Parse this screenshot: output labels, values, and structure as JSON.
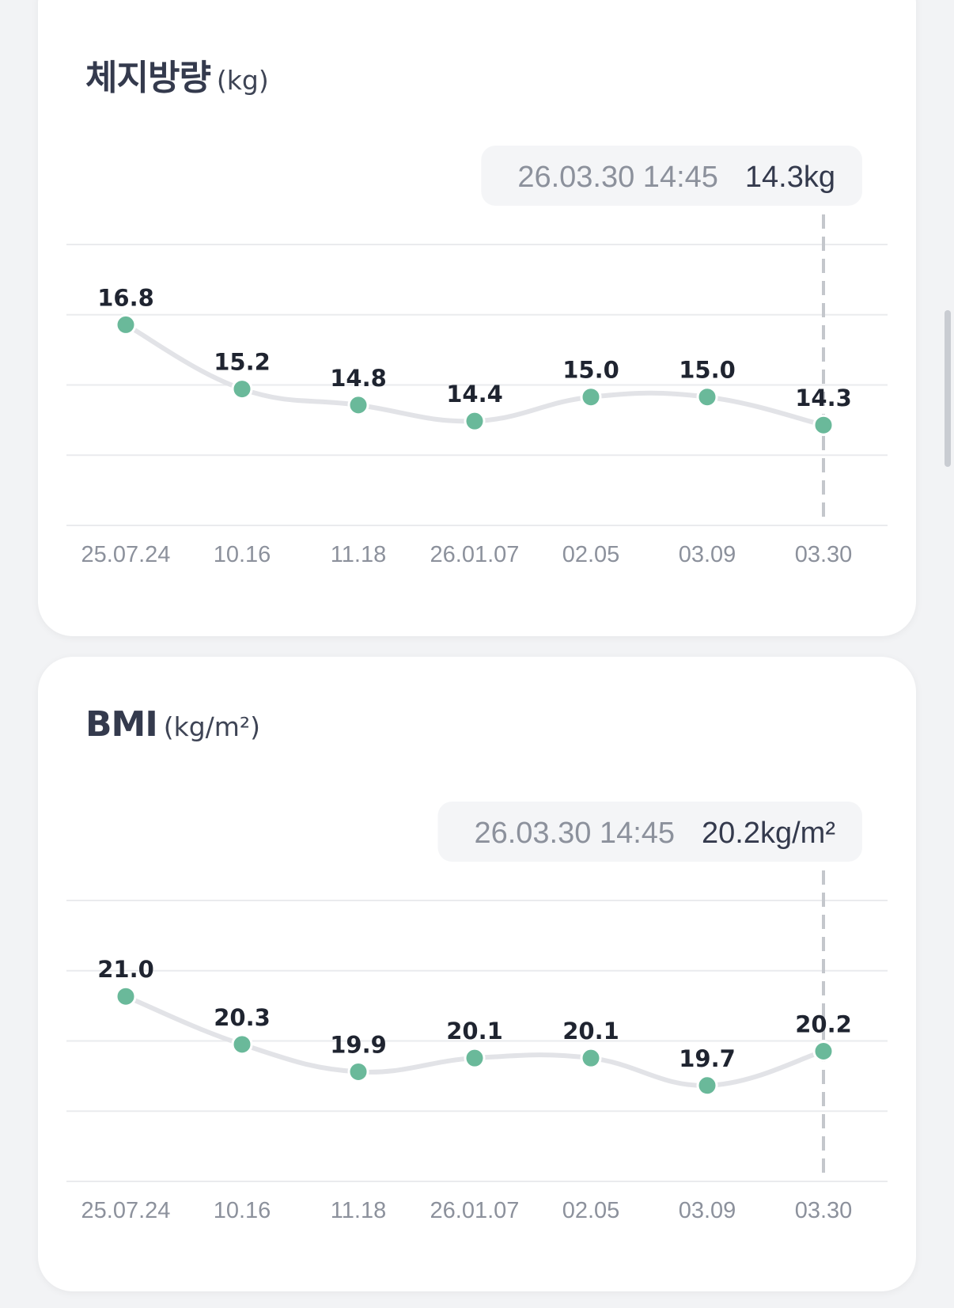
{
  "cards": [
    {
      "id": "fat",
      "title": "체지방량",
      "unit": "(kg)",
      "tooltip": {
        "datetime": "26.03.30 14:45",
        "value": "14.3kg"
      }
    },
    {
      "id": "bmi",
      "title": "BMI",
      "unit": "(kg/m²)",
      "tooltip": {
        "datetime": "26.03.30 14:45",
        "value": "20.2kg/m²"
      }
    }
  ],
  "chart_data": [
    {
      "type": "line",
      "title": "체지방량",
      "ylabel": "(kg)",
      "categories": [
        "25.07.24",
        "10.16",
        "11.18",
        "26.01.07",
        "02.05",
        "03.09",
        "03.30"
      ],
      "values": [
        16.8,
        15.2,
        14.8,
        14.4,
        15.0,
        15.0,
        14.3
      ],
      "value_labels": [
        "16.8",
        "15.2",
        "14.8",
        "14.4",
        "15.0",
        "15.0",
        "14.3"
      ],
      "ylim": [
        11.8,
        18.8
      ],
      "grid": true,
      "selected_index": 6,
      "colors": {
        "point": "#6ab99a",
        "line": "#e2e3e7",
        "grid": "#eaebee",
        "guide": "#c4c7cc"
      }
    },
    {
      "type": "line",
      "title": "BMI",
      "ylabel": "(kg/m²)",
      "categories": [
        "25.07.24",
        "10.16",
        "11.18",
        "26.01.07",
        "02.05",
        "03.09",
        "03.30"
      ],
      "values": [
        21.0,
        20.3,
        19.9,
        20.1,
        20.1,
        19.7,
        20.2
      ],
      "value_labels": [
        "21.0",
        "20.3",
        "19.9",
        "20.1",
        "20.1",
        "19.7",
        "20.2"
      ],
      "ylim": [
        18.3,
        22.4
      ],
      "grid": true,
      "selected_index": 6,
      "colors": {
        "point": "#6ab99a",
        "line": "#e2e3e7",
        "grid": "#eaebee",
        "guide": "#c4c7cc"
      }
    }
  ]
}
